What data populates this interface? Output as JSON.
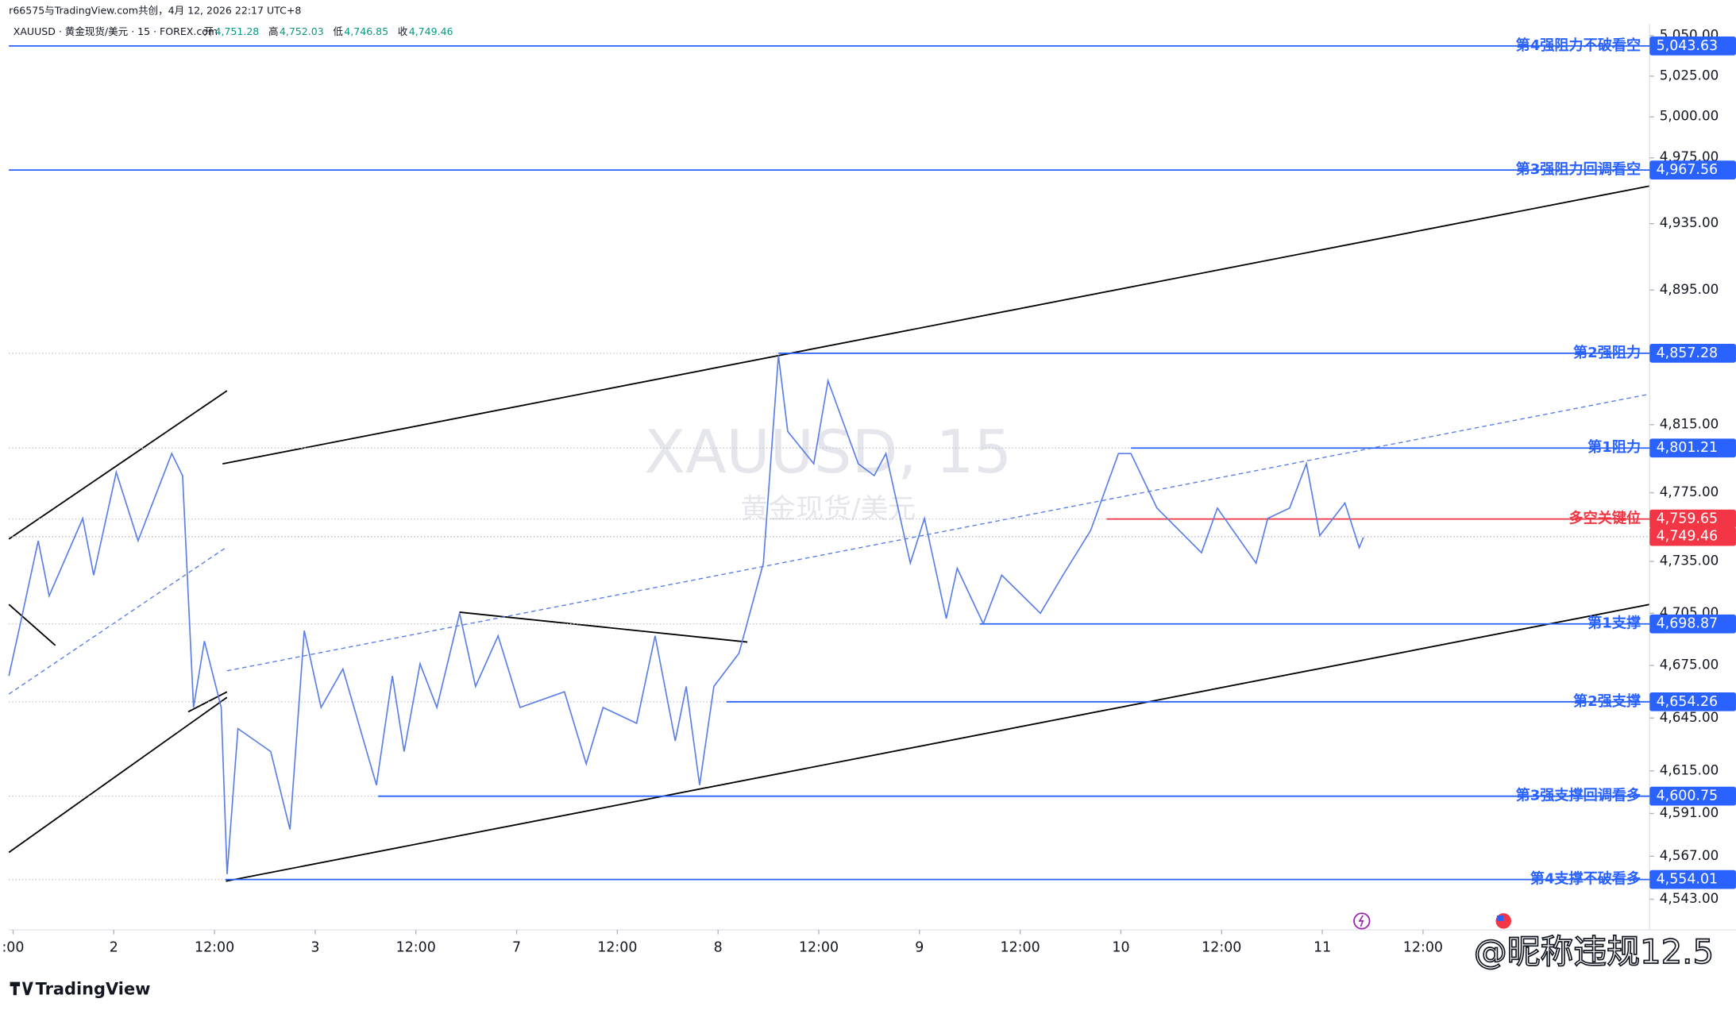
{
  "chart_data": {
    "type": "line",
    "credit": "r66575与TradingView.com共创，4月 12, 2026 22:17 UTC+8",
    "title": "XAUUSD · 黄金现货/美元 · 15 · FOREX.com",
    "ohlc": [
      {
        "label": "开",
        "value": "4,751.28"
      },
      {
        "label": "高",
        "value": "4,752.03"
      },
      {
        "label": "低",
        "value": "4,746.85"
      },
      {
        "label": "收",
        "value": "4,749.46"
      }
    ],
    "watermark": "XAUUSD, 15",
    "watermark_subtitle": "黄金现货/美元",
    "brand": "TradingView",
    "overlay_text": "@昵称违规12.5",
    "log_scale": true,
    "grid": false,
    "xlim": [
      -12.5,
      183
    ],
    "xticks": [
      {
        "value": -12,
        "label": ":00"
      },
      {
        "value": 0,
        "label": "2"
      },
      {
        "value": 12,
        "label": "12:00"
      },
      {
        "value": 24,
        "label": "3"
      },
      {
        "value": 36,
        "label": "12:00"
      },
      {
        "value": 48,
        "label": "7"
      },
      {
        "value": 60,
        "label": "12:00"
      },
      {
        "value": 72,
        "label": "8"
      },
      {
        "value": 84,
        "label": "12:00"
      },
      {
        "value": 96,
        "label": "9"
      },
      {
        "value": 108,
        "label": "12:00"
      },
      {
        "value": 120,
        "label": "10"
      },
      {
        "value": 132,
        "label": "12:00"
      },
      {
        "value": 144,
        "label": "11"
      },
      {
        "value": 156,
        "label": "12:00"
      }
    ],
    "ylim": [
      4526,
      5057
    ],
    "yticks": [
      {
        "value": 5050,
        "label": "5,050.00"
      },
      {
        "value": 5025,
        "label": "5,025.00"
      },
      {
        "value": 5000,
        "label": "5,000.00"
      },
      {
        "value": 4975,
        "label": "4,975.00"
      },
      {
        "value": 4935,
        "label": "4,935.00"
      },
      {
        "value": 4895,
        "label": "4,895.00"
      },
      {
        "value": 4815,
        "label": "4,815.00"
      },
      {
        "value": 4775,
        "label": "4,775.00"
      },
      {
        "value": 4735,
        "label": "4,735.00"
      },
      {
        "value": 4705,
        "label": "4,705.00"
      },
      {
        "value": 4675,
        "label": "4,675.00"
      },
      {
        "value": 4645,
        "label": "4,645.00"
      },
      {
        "value": 4615,
        "label": "4,615.00"
      },
      {
        "value": 4591,
        "label": "4,591.00"
      },
      {
        "value": 4567,
        "label": "4,567.00"
      },
      {
        "value": 4543,
        "label": "4,543.00"
      }
    ],
    "series": [
      {
        "name": "XAUUSD",
        "color": "#5b7fe6",
        "x": [
          -12.5,
          -11,
          -9,
          -7.7,
          -3.7,
          -2.4,
          0.3,
          2.9,
          6.9,
          8.2,
          9.5,
          10.8,
          12.8,
          13.5,
          14.8,
          18.7,
          21,
          22.7,
          24.7,
          27.3,
          31.3,
          33.2,
          34.6,
          36.5,
          38.5,
          41.2,
          43.1,
          45.8,
          48.4,
          53.7,
          56.3,
          58.3,
          62.3,
          64.5,
          66.9,
          68.2,
          69.8,
          71.5,
          74.5,
          77.4,
          79.2,
          80.3,
          83.4,
          85.1,
          88.7,
          90.6,
          92,
          94.9,
          96.6,
          99.2,
          100.5,
          103.6,
          105.8,
          110.4,
          113.1,
          116.4,
          119.7,
          121.2,
          124.3,
          129.6,
          131.5,
          136.1,
          137.5,
          140.1,
          142.1,
          143.7,
          146.7,
          148.4,
          148.9
        ],
        "values": [
          4669,
          4702,
          4747,
          4715,
          4760,
          4727,
          4787,
          4747,
          4798,
          4785,
          4651,
          4689,
          4651,
          4557,
          4639,
          4626,
          4582,
          4695,
          4651,
          4673,
          4607,
          4669,
          4626,
          4676,
          4651,
          4705,
          4663,
          4692,
          4651,
          4660,
          4619,
          4651,
          4642,
          4692,
          4632,
          4663,
          4607,
          4663,
          4682,
          4734,
          4856,
          4811,
          4792,
          4841,
          4792,
          4785,
          4798,
          4734,
          4760,
          4702,
          4731,
          4699,
          4727,
          4705,
          4727,
          4753,
          4798,
          4798,
          4766,
          4740,
          4766,
          4734,
          4760,
          4766,
          4792,
          4750,
          4769,
          4743,
          4749
        ]
      }
    ],
    "levels": [
      {
        "name": "第4强阻力不破看空",
        "value": 5043.63,
        "value_label": "5,043.63",
        "from": -12.5,
        "color": "#2962ff"
      },
      {
        "name": "第3强阻力回调看空",
        "value": 4967.56,
        "value_label": "4,967.56",
        "from": -12.5,
        "color": "#2962ff"
      },
      {
        "name": "第2强阻力",
        "value": 4857.28,
        "value_label": "4,857.28",
        "from": 79.2,
        "color": "#2962ff"
      },
      {
        "name": "第1阻力",
        "value": 4801.21,
        "value_label": "4,801.21",
        "from": 121.2,
        "color": "#2962ff"
      },
      {
        "name": "多空关键位",
        "value": 4759.65,
        "value_label": "4,759.65",
        "from": 118.3,
        "color": "#f23645"
      },
      {
        "name": "第1支撑",
        "value": 4698.87,
        "value_label": "4,698.87",
        "from": 103.2,
        "color": "#2962ff"
      },
      {
        "name": "第2强支撑",
        "value": 4654.26,
        "value_label": "4,654.26",
        "from": 73,
        "color": "#2962ff"
      },
      {
        "name": "第3强支撑回调看多",
        "value": 4600.75,
        "value_label": "4,600.75",
        "from": 31.5,
        "color": "#2962ff"
      },
      {
        "name": "第4支撑不破看多",
        "value": 4554.01,
        "value_label": "4,554.01",
        "from": 13.3,
        "color": "#2962ff"
      }
    ],
    "last_price": {
      "value": 4749.46,
      "label": "4,749.46",
      "color": "#f23645"
    }
  }
}
